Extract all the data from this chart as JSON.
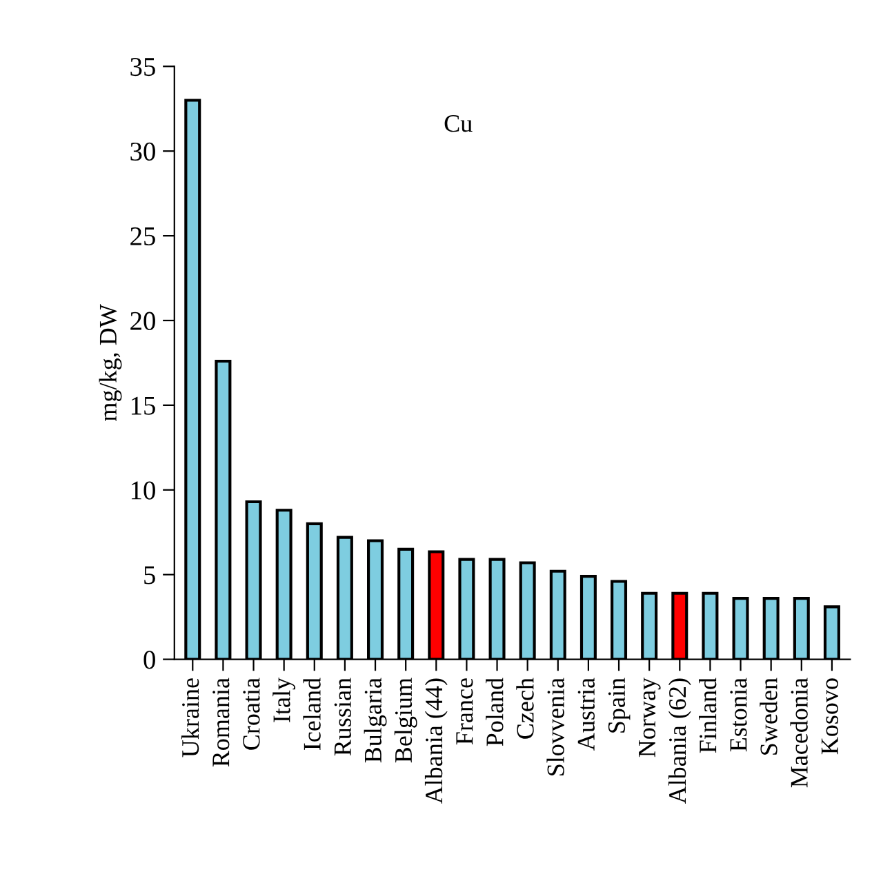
{
  "chart_data": {
    "type": "bar",
    "title": "Cu",
    "ylabel": "mg/kg, DW",
    "categories": [
      "Ukraine",
      "Romania",
      "Croatia",
      "Italy",
      "Iceland",
      "Russian",
      "Bulgaria",
      "Belgium",
      "Albania (44)",
      "France",
      "Poland",
      "Czech",
      "Slovvenia",
      "Austria",
      "Spain",
      "Norway",
      "Albania (62)",
      "Finland",
      "Estonia",
      "Sweden",
      "Macedonia",
      "Kosovo"
    ],
    "values": [
      33.0,
      17.6,
      9.3,
      8.8,
      8.0,
      7.2,
      7.0,
      6.5,
      6.35,
      5.9,
      5.9,
      5.7,
      5.2,
      4.9,
      4.6,
      3.9,
      3.9,
      3.9,
      3.6,
      3.6,
      3.6,
      3.1
    ],
    "colors": [
      "#7ecde0",
      "#7ecde0",
      "#7ecde0",
      "#7ecde0",
      "#7ecde0",
      "#7ecde0",
      "#7ecde0",
      "#7ecde0",
      "#ff0000",
      "#7ecde0",
      "#7ecde0",
      "#7ecde0",
      "#7ecde0",
      "#7ecde0",
      "#7ecde0",
      "#7ecde0",
      "#ff0000",
      "#7ecde0",
      "#7ecde0",
      "#7ecde0",
      "#7ecde0",
      "#7ecde0"
    ],
    "ylim": [
      0,
      35
    ],
    "yticks": [
      0,
      5,
      10,
      15,
      20,
      25,
      30,
      35
    ],
    "grid": false,
    "legend": false
  }
}
